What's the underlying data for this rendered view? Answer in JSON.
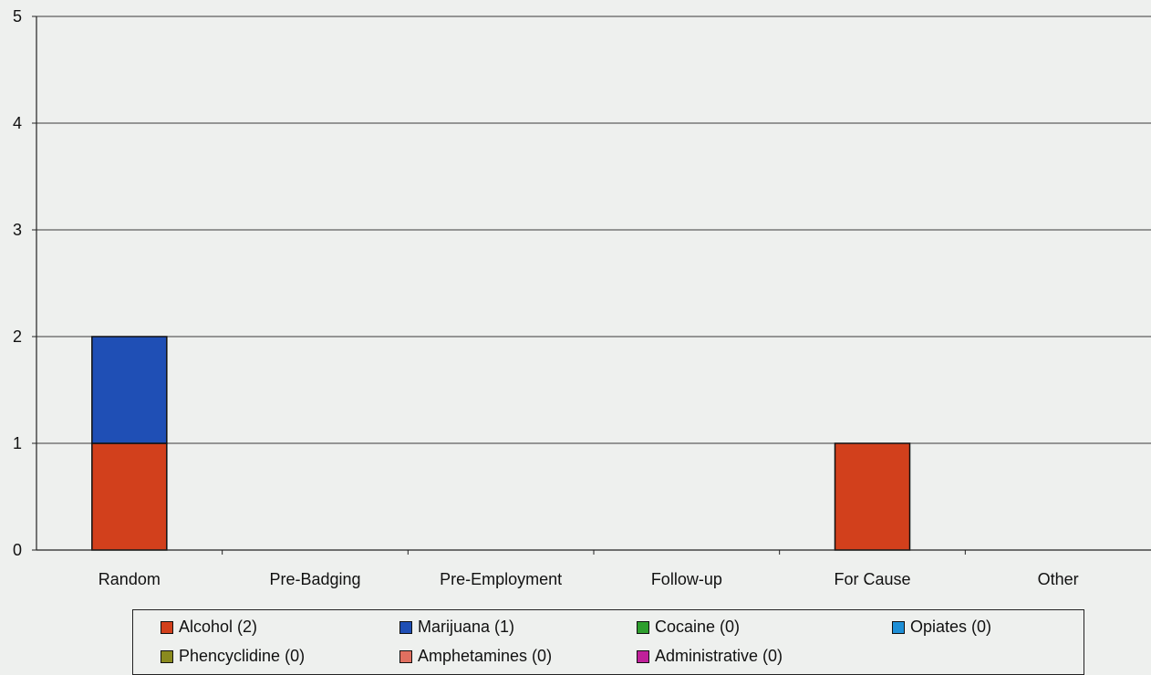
{
  "chart_data": {
    "type": "bar",
    "stacked": true,
    "title": "",
    "xlabel": "",
    "ylabel": "",
    "ylim": [
      0,
      5
    ],
    "yticks": [
      0,
      1,
      2,
      3,
      4,
      5
    ],
    "grid": true,
    "legend_position": "bottom",
    "categories": [
      "Random",
      "Pre-Badging",
      "Pre-Employment",
      "Follow-up",
      "For Cause",
      "Other"
    ],
    "series": [
      {
        "name": "Alcohol (2)",
        "color": "#d2401c",
        "values": [
          1,
          0,
          0,
          0,
          1,
          0
        ]
      },
      {
        "name": "Marijuana (1)",
        "color": "#1f4fb5",
        "values": [
          1,
          0,
          0,
          0,
          0,
          0
        ]
      },
      {
        "name": "Cocaine (0)",
        "color": "#2e9e2e",
        "values": [
          0,
          0,
          0,
          0,
          0,
          0
        ]
      },
      {
        "name": "Opiates (0)",
        "color": "#1e8fd6",
        "values": [
          0,
          0,
          0,
          0,
          0,
          0
        ]
      },
      {
        "name": "Phencyclidine (0)",
        "color": "#8a8a1e",
        "values": [
          0,
          0,
          0,
          0,
          0,
          0
        ]
      },
      {
        "name": "Amphetamines (0)",
        "color": "#e07060",
        "values": [
          0,
          0,
          0,
          0,
          0,
          0
        ]
      },
      {
        "name": "Administrative (0)",
        "color": "#c0209a",
        "values": [
          0,
          0,
          0,
          0,
          0,
          0
        ]
      }
    ]
  }
}
